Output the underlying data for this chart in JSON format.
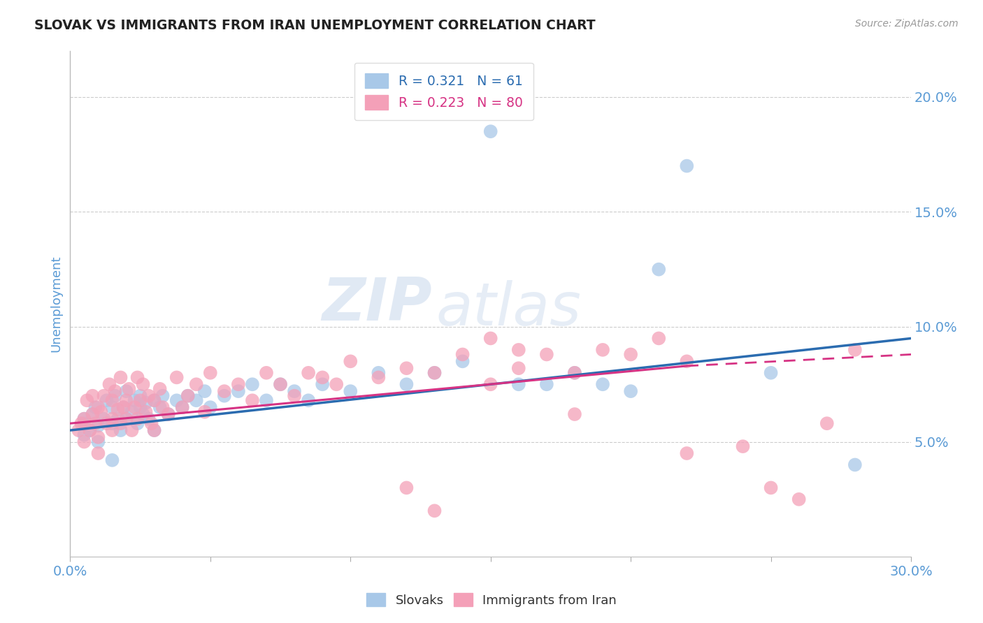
{
  "title": "SLOVAK VS IMMIGRANTS FROM IRAN UNEMPLOYMENT CORRELATION CHART",
  "source_text": "Source: ZipAtlas.com",
  "ylabel": "Unemployment",
  "xlim": [
    0.0,
    0.3
  ],
  "ylim": [
    0.0,
    0.22
  ],
  "yticks": [
    0.05,
    0.1,
    0.15,
    0.2
  ],
  "ytick_labels": [
    "5.0%",
    "10.0%",
    "15.0%",
    "20.0%"
  ],
  "xticks": [
    0.0,
    0.05,
    0.1,
    0.15,
    0.2,
    0.25,
    0.3
  ],
  "xtick_labels": [
    "0.0%",
    "",
    "",
    "",
    "",
    "",
    "30.0%"
  ],
  "blue_color": "#a8c8e8",
  "pink_color": "#f4a0b8",
  "blue_line_color": "#2b6cb0",
  "pink_line_color": "#d63384",
  "legend_R1": "R = 0.321",
  "legend_N1": "N = 61",
  "legend_R2": "R = 0.223",
  "legend_N2": "N = 80",
  "watermark_zip": "ZIP",
  "watermark_atlas": "atlas",
  "background_color": "#ffffff",
  "grid_color": "#cccccc",
  "title_color": "#222222",
  "axis_label_color": "#5b9bd5",
  "tick_color": "#5b9bd5",
  "blue_trend_xstart": 0.0,
  "blue_trend_xend": 0.3,
  "blue_trend_ystart": 0.055,
  "blue_trend_yend": 0.095,
  "pink_trend_xstart": 0.0,
  "pink_trend_xend": 0.22,
  "pink_trend_ystart": 0.058,
  "pink_trend_yend": 0.083,
  "pink_trend_dash_xstart": 0.22,
  "pink_trend_dash_xend": 0.3,
  "pink_trend_dash_ystart": 0.083,
  "pink_trend_dash_yend": 0.088,
  "slovaks_x": [
    0.005,
    0.005,
    0.005,
    0.007,
    0.008,
    0.009,
    0.01,
    0.01,
    0.012,
    0.013,
    0.015,
    0.015,
    0.015,
    0.016,
    0.017,
    0.018,
    0.019,
    0.02,
    0.02,
    0.022,
    0.023,
    0.024,
    0.025,
    0.025,
    0.026,
    0.027,
    0.028,
    0.03,
    0.03,
    0.032,
    0.033,
    0.035,
    0.038,
    0.04,
    0.042,
    0.045,
    0.048,
    0.05,
    0.055,
    0.06,
    0.065,
    0.07,
    0.075,
    0.08,
    0.085,
    0.09,
    0.1,
    0.11,
    0.12,
    0.13,
    0.14,
    0.15,
    0.16,
    0.17,
    0.18,
    0.19,
    0.2,
    0.21,
    0.22,
    0.25,
    0.28
  ],
  "slovaks_y": [
    0.058,
    0.06,
    0.053,
    0.055,
    0.062,
    0.065,
    0.057,
    0.05,
    0.06,
    0.068,
    0.058,
    0.065,
    0.042,
    0.07,
    0.06,
    0.055,
    0.065,
    0.06,
    0.072,
    0.063,
    0.068,
    0.058,
    0.065,
    0.07,
    0.062,
    0.067,
    0.06,
    0.068,
    0.055,
    0.065,
    0.07,
    0.062,
    0.068,
    0.065,
    0.07,
    0.068,
    0.072,
    0.065,
    0.07,
    0.072,
    0.075,
    0.068,
    0.075,
    0.072,
    0.068,
    0.075,
    0.072,
    0.08,
    0.075,
    0.08,
    0.085,
    0.185,
    0.075,
    0.075,
    0.08,
    0.075,
    0.072,
    0.125,
    0.17,
    0.08,
    0.04
  ],
  "iran_x": [
    0.003,
    0.004,
    0.005,
    0.005,
    0.006,
    0.007,
    0.008,
    0.008,
    0.009,
    0.01,
    0.01,
    0.01,
    0.011,
    0.012,
    0.013,
    0.014,
    0.015,
    0.015,
    0.015,
    0.016,
    0.017,
    0.018,
    0.018,
    0.019,
    0.02,
    0.02,
    0.021,
    0.022,
    0.023,
    0.024,
    0.024,
    0.025,
    0.026,
    0.027,
    0.028,
    0.029,
    0.03,
    0.03,
    0.032,
    0.033,
    0.035,
    0.038,
    0.04,
    0.042,
    0.045,
    0.048,
    0.05,
    0.055,
    0.06,
    0.065,
    0.07,
    0.075,
    0.08,
    0.085,
    0.09,
    0.095,
    0.1,
    0.11,
    0.12,
    0.13,
    0.14,
    0.15,
    0.16,
    0.17,
    0.18,
    0.19,
    0.2,
    0.21,
    0.22,
    0.18,
    0.22,
    0.24,
    0.25,
    0.26,
    0.27,
    0.28,
    0.15,
    0.16,
    0.12,
    0.13
  ],
  "iran_y": [
    0.055,
    0.058,
    0.05,
    0.06,
    0.068,
    0.055,
    0.062,
    0.07,
    0.058,
    0.052,
    0.065,
    0.045,
    0.063,
    0.07,
    0.058,
    0.075,
    0.06,
    0.068,
    0.055,
    0.072,
    0.064,
    0.058,
    0.078,
    0.065,
    0.068,
    0.06,
    0.073,
    0.055,
    0.065,
    0.078,
    0.06,
    0.068,
    0.075,
    0.063,
    0.07,
    0.058,
    0.068,
    0.055,
    0.073,
    0.065,
    0.062,
    0.078,
    0.065,
    0.07,
    0.075,
    0.063,
    0.08,
    0.072,
    0.075,
    0.068,
    0.08,
    0.075,
    0.07,
    0.08,
    0.078,
    0.075,
    0.085,
    0.078,
    0.082,
    0.08,
    0.088,
    0.075,
    0.082,
    0.088,
    0.08,
    0.09,
    0.088,
    0.095,
    0.085,
    0.062,
    0.045,
    0.048,
    0.03,
    0.025,
    0.058,
    0.09,
    0.095,
    0.09,
    0.03,
    0.02
  ]
}
